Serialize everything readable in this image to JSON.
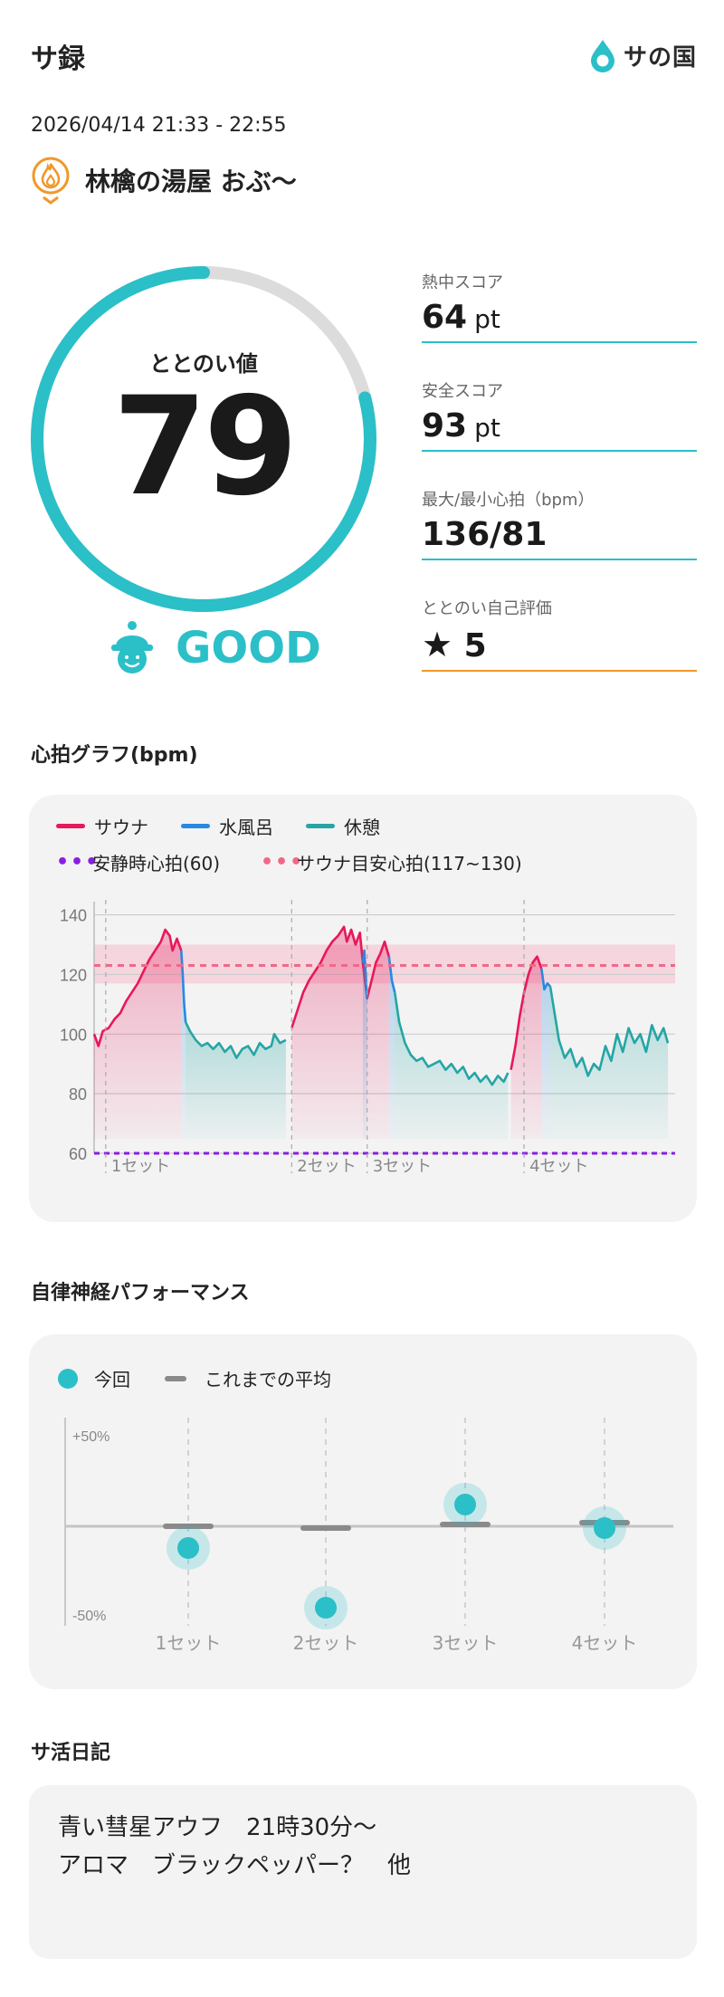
{
  "app": {
    "title": "サ録",
    "brand": "サの国"
  },
  "session": {
    "datetime": "2026/04/14 21:33 - 22:55",
    "place": "林檎の湯屋 おぶ～"
  },
  "gauge": {
    "label": "ととのい値",
    "value": "79",
    "fraction": 0.79,
    "grade": "GOOD"
  },
  "metrics": [
    {
      "label": "熱中スコア",
      "value": "64",
      "unit": "pt"
    },
    {
      "label": "安全スコア",
      "value": "93",
      "unit": "pt"
    },
    {
      "label": "最大/最小心拍（bpm）",
      "value": "136/81",
      "unit": ""
    },
    {
      "label": "ととのい自己評価",
      "value": "5",
      "unit": "",
      "icon": "star-icon"
    }
  ],
  "heart_section": {
    "title": "心拍グラフ(bpm)",
    "legend": {
      "sauna": "サウナ",
      "water": "水風呂",
      "rest": "休憩",
      "resting_hr": "安静時心拍(60)",
      "target_hr": "サウナ目安心拍(117~130)"
    }
  },
  "ans_section": {
    "title": "自律神経パフォーマンス",
    "legend": {
      "current": "今回",
      "average": "これまでの平均"
    }
  },
  "diary": {
    "title": "サ活日記",
    "lines": [
      "青い彗星アウフ　21時30分～",
      "アロマ　ブラックペッパー？　他"
    ]
  },
  "colors": {
    "accent": "#2bbfc8",
    "sauna": "#e8185a",
    "water": "#2a88e0",
    "rest": "#25a5a5",
    "resting_line": "#8a1ee0",
    "target_line": "#f06888",
    "rating_line": "#f0982a"
  },
  "chart_data": [
    {
      "type": "line",
      "title": "心拍グラフ(bpm)",
      "ylim": [
        60,
        142
      ],
      "yticks": [
        "140",
        "120",
        "100",
        "80",
        "60"
      ],
      "set_labels": [
        "1セット",
        "2セット",
        "3セット",
        "4セット"
      ],
      "reference_lines": {
        "resting_hr": 60,
        "target_band": [
          117,
          130
        ],
        "target_mid": 123
      },
      "series": [
        {
          "name": "サウナ",
          "points": [
            [
              0,
              100
            ],
            [
              3,
              96
            ],
            [
              6,
              101
            ],
            [
              10,
              102
            ],
            [
              14,
              105
            ],
            [
              18,
              107
            ],
            [
              22,
              111
            ],
            [
              26,
              114
            ],
            [
              30,
              117
            ],
            [
              34,
              121
            ],
            [
              38,
              125
            ],
            [
              42,
              128
            ],
            [
              46,
              131
            ],
            [
              49,
              135
            ],
            [
              52,
              133
            ],
            [
              54,
              128
            ],
            [
              57,
              132
            ],
            [
              60,
              128
            ],
            [
              136,
              102
            ],
            [
              140,
              108
            ],
            [
              144,
              114
            ],
            [
              148,
              118
            ],
            [
              152,
              121
            ],
            [
              156,
              124
            ],
            [
              160,
              128
            ],
            [
              164,
              131
            ],
            [
              168,
              133
            ],
            [
              172,
              136
            ],
            [
              174,
              131
            ],
            [
              177,
              135
            ],
            [
              180,
              130
            ],
            [
              183,
              134
            ],
            [
              185,
              124
            ],
            [
              188,
              112
            ],
            [
              191,
              118
            ],
            [
              194,
              124
            ],
            [
              197,
              127
            ],
            [
              200,
              131
            ],
            [
              203,
              126
            ],
            [
              287,
              88
            ],
            [
              290,
              96
            ],
            [
              293,
              106
            ],
            [
              296,
              114
            ],
            [
              299,
              120
            ],
            [
              302,
              124
            ],
            [
              305,
              126
            ],
            [
              308,
              122
            ]
          ]
        },
        {
          "name": "水風呂",
          "points": [
            [
              60,
              128
            ],
            [
              61,
              120
            ],
            [
              62,
              110
            ],
            [
              63,
              104
            ],
            [
              185,
              124
            ],
            [
              186,
              128
            ],
            [
              187,
              120
            ],
            [
              188,
              112
            ],
            [
              203,
              126
            ],
            [
              205,
              118
            ],
            [
              207,
              114
            ],
            [
              308,
              122
            ],
            [
              310,
              115
            ],
            [
              312,
              117
            ],
            [
              314,
              116
            ]
          ]
        },
        {
          "name": "休憩",
          "points": [
            [
              63,
              104
            ],
            [
              66,
              101
            ],
            [
              70,
              98
            ],
            [
              74,
              96
            ],
            [
              78,
              97
            ],
            [
              82,
              95
            ],
            [
              86,
              97
            ],
            [
              90,
              94
            ],
            [
              94,
              96
            ],
            [
              98,
              92
            ],
            [
              102,
              95
            ],
            [
              106,
              96
            ],
            [
              110,
              93
            ],
            [
              114,
              97
            ],
            [
              118,
              95
            ],
            [
              122,
              96
            ],
            [
              124,
              100
            ],
            [
              128,
              97
            ],
            [
              132,
              98
            ],
            [
              207,
              114
            ],
            [
              210,
              104
            ],
            [
              214,
              97
            ],
            [
              218,
              93
            ],
            [
              222,
              91
            ],
            [
              226,
              92
            ],
            [
              230,
              89
            ],
            [
              234,
              90
            ],
            [
              238,
              91
            ],
            [
              242,
              88
            ],
            [
              246,
              90
            ],
            [
              250,
              87
            ],
            [
              254,
              89
            ],
            [
              258,
              85
            ],
            [
              262,
              87
            ],
            [
              266,
              84
            ],
            [
              270,
              86
            ],
            [
              274,
              83
            ],
            [
              278,
              86
            ],
            [
              282,
              84
            ],
            [
              285,
              87
            ],
            [
              314,
              116
            ],
            [
              317,
              107
            ],
            [
              320,
              98
            ],
            [
              324,
              92
            ],
            [
              328,
              95
            ],
            [
              332,
              89
            ],
            [
              336,
              92
            ],
            [
              340,
              86
            ],
            [
              344,
              90
            ],
            [
              348,
              88
            ],
            [
              352,
              96
            ],
            [
              356,
              91
            ],
            [
              360,
              100
            ],
            [
              364,
              94
            ],
            [
              368,
              102
            ],
            [
              372,
              97
            ],
            [
              376,
              100
            ],
            [
              380,
              94
            ],
            [
              384,
              103
            ],
            [
              388,
              98
            ],
            [
              392,
              102
            ],
            [
              395,
              97
            ]
          ]
        }
      ]
    },
    {
      "type": "scatter",
      "title": "自律神経パフォーマンス",
      "categories": [
        "1セット",
        "2セット",
        "3セット",
        "4セット"
      ],
      "ylim": [
        -50,
        50
      ],
      "ytick_labels": [
        "+50%",
        "-50%"
      ],
      "series": [
        {
          "name": "今回",
          "values": [
            -12,
            -45,
            12,
            -1
          ]
        },
        {
          "name": "これまでの平均",
          "values": [
            0,
            -1,
            1,
            2
          ]
        }
      ]
    }
  ]
}
